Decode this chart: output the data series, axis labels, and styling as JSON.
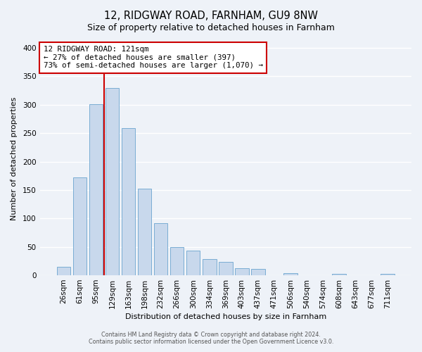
{
  "title": "12, RIDGWAY ROAD, FARNHAM, GU9 8NW",
  "subtitle": "Size of property relative to detached houses in Farnham",
  "xlabel": "Distribution of detached houses by size in Farnham",
  "ylabel": "Number of detached properties",
  "bar_labels": [
    "26sqm",
    "61sqm",
    "95sqm",
    "129sqm",
    "163sqm",
    "198sqm",
    "232sqm",
    "266sqm",
    "300sqm",
    "334sqm",
    "369sqm",
    "403sqm",
    "437sqm",
    "471sqm",
    "506sqm",
    "540sqm",
    "574sqm",
    "608sqm",
    "643sqm",
    "677sqm",
    "711sqm"
  ],
  "bar_heights": [
    15,
    172,
    301,
    330,
    259,
    153,
    92,
    50,
    43,
    29,
    23,
    13,
    11,
    0,
    4,
    0,
    0,
    2,
    0,
    0,
    2
  ],
  "bar_color": "#c8d8ec",
  "bar_edge_color": "#7aadd4",
  "vline_color": "#cc0000",
  "annotation_line1": "12 RIDGWAY ROAD: 121sqm",
  "annotation_line2": "← 27% of detached houses are smaller (397)",
  "annotation_line3": "73% of semi-detached houses are larger (1,070) →",
  "annotation_box_color": "#ffffff",
  "annotation_box_edge": "#cc0000",
  "ylim": [
    0,
    410
  ],
  "yticks": [
    0,
    50,
    100,
    150,
    200,
    250,
    300,
    350,
    400
  ],
  "footer_line1": "Contains HM Land Registry data © Crown copyright and database right 2024.",
  "footer_line2": "Contains public sector information licensed under the Open Government Licence v3.0.",
  "bg_color": "#eef2f8",
  "plot_bg_color": "#eef2f8",
  "grid_color": "#ffffff",
  "title_fontsize": 10.5,
  "axis_fontsize": 8,
  "tick_fontsize": 7.5,
  "footer_fontsize": 5.8
}
